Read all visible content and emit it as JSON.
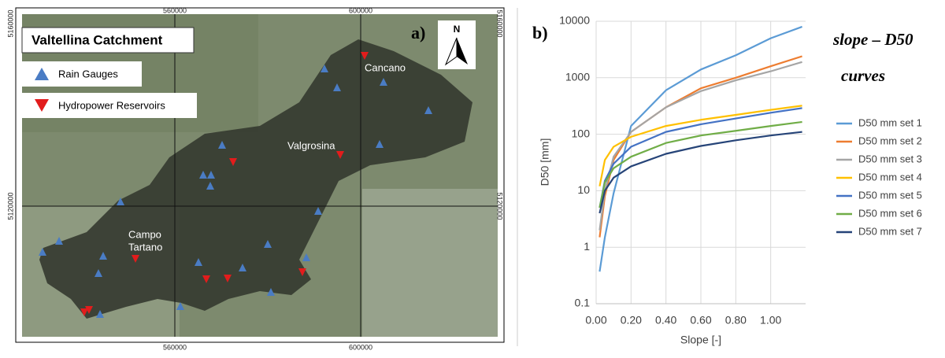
{
  "map": {
    "panel_label": "a)",
    "title": "Valtellina Catchment",
    "north": "N",
    "legend": [
      "Rain Gauges",
      "Hydropower Reservoirs"
    ],
    "places": [
      [
        "Cancano"
      ],
      [
        "Valgrosina"
      ],
      [
        "Campo",
        "Tartano"
      ]
    ],
    "x_coords": [
      560000,
      600000
    ],
    "y_coords": [
      5160000,
      5120000
    ]
  },
  "chart_data": {
    "type": "line",
    "panel_label": "b)",
    "title": "slope – D50",
    "subtitle": "curves",
    "x_label": "Slope [-]",
    "y_label": "D50 [mm]",
    "x": [
      0.02,
      0.05,
      0.1,
      0.2,
      0.4,
      0.6,
      0.8,
      1.0,
      1.18
    ],
    "xlim": [
      0,
      1.2
    ],
    "xticks": [
      {
        "value": 0,
        "label": "0.00"
      },
      {
        "value": 0.2,
        "label": "0.20"
      },
      {
        "value": 0.4,
        "label": "0.40"
      },
      {
        "value": 0.6,
        "label": "0.60"
      },
      {
        "value": 0.8,
        "label": "0.80"
      },
      {
        "value": 1,
        "label": "1.00"
      }
    ],
    "ylim": [
      0.1,
      10000
    ],
    "yticks": [
      0.1,
      1,
      10,
      100,
      1000,
      10000
    ],
    "log_y": true,
    "grid": true,
    "series": [
      {
        "name": "D50 mm set 1",
        "color": "#5b9bd5",
        "values": [
          0.37,
          1.5,
          9,
          140,
          600,
          1400,
          2500,
          5000,
          8000
        ]
      },
      {
        "name": "D50 mm set 2",
        "color": "#ed7d31",
        "values": [
          1.5,
          8,
          35,
          110,
          300,
          650,
          1000,
          1600,
          2400
        ]
      },
      {
        "name": "D50 mm set 3",
        "color": "#a5a5a5",
        "values": [
          2,
          10,
          40,
          110,
          300,
          580,
          900,
          1300,
          1900
        ]
      },
      {
        "name": "D50 mm set 4",
        "color": "#ffc000",
        "values": [
          12,
          35,
          60,
          90,
          140,
          180,
          220,
          270,
          320
        ]
      },
      {
        "name": "D50 mm set 5",
        "color": "#4472c4",
        "values": [
          5,
          15,
          30,
          60,
          110,
          150,
          190,
          240,
          290
        ]
      },
      {
        "name": "D50 mm set 6",
        "color": "#70ad47",
        "values": [
          5,
          14,
          25,
          40,
          70,
          95,
          115,
          140,
          165
        ]
      },
      {
        "name": "D50 mm set 7",
        "color": "#264478",
        "values": [
          4,
          10,
          17,
          27,
          45,
          62,
          78,
          95,
          110
        ]
      }
    ]
  }
}
